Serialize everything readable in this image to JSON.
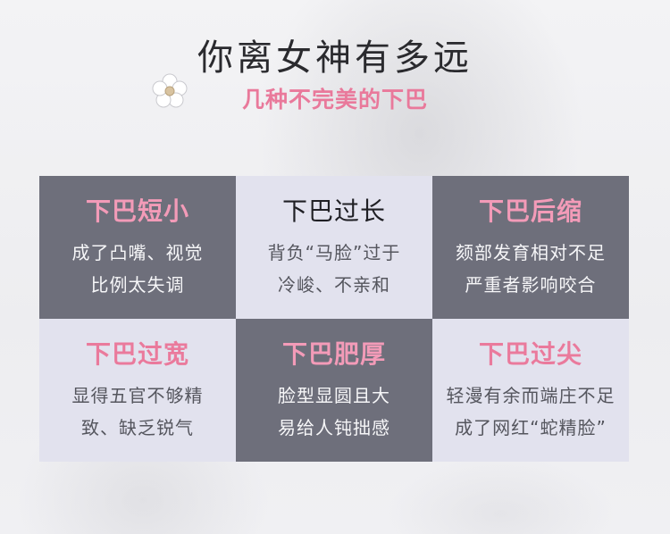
{
  "header": {
    "title": "你离女神有多远",
    "subtitle": "几种不完美的下巴"
  },
  "cards": [
    {
      "title": "下巴短小",
      "lines": [
        "成了凸嘴、视觉",
        "比例太失调"
      ]
    },
    {
      "title": "下巴过长",
      "lines": [
        "背负“马脸”过于",
        "冷峻、不亲和"
      ]
    },
    {
      "title": "下巴后缩",
      "lines": [
        "颏部发育相对不足",
        "严重者影响咬合"
      ]
    },
    {
      "title": "下巴过宽",
      "lines": [
        "显得五官不够精",
        "致、缺乏锐气"
      ]
    },
    {
      "title": "下巴肥厚",
      "lines": [
        "脸型显圆且大",
        "易给人钝拙感"
      ]
    },
    {
      "title": "下巴过尖",
      "lines": [
        "轻漫有余而端庄不足",
        "成了网红“蛇精脸”"
      ]
    }
  ],
  "colors": {
    "dark_cell": "#6e6f7b",
    "light_cell": "#e2e2ee",
    "pink": "#e9799b"
  },
  "icons": {
    "earring": "flower-earring-icon"
  }
}
